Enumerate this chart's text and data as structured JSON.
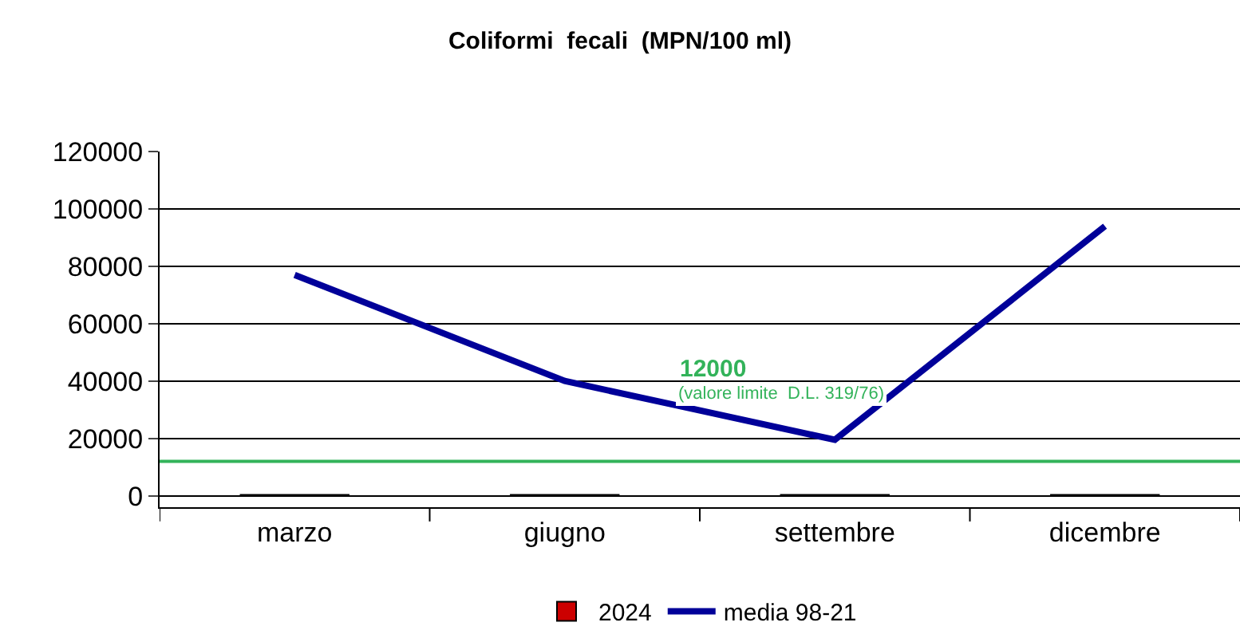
{
  "chart_data": {
    "type": "bar",
    "title": "Coliformi  fecali  (MPN/100 ml)",
    "categories": [
      "marzo",
      "giugno",
      "settembre",
      "dicembre"
    ],
    "series": [
      {
        "name": "2024",
        "color": "#cc0000",
        "values": [
          300,
          300,
          300,
          300
        ]
      },
      {
        "name": "media 98-21",
        "type": "line",
        "color": "#000099",
        "values": [
          77000,
          40000,
          19500,
          94000
        ]
      }
    ],
    "ylim": [
      -4000,
      120000
    ],
    "yticks": [
      0,
      20000,
      40000,
      60000,
      80000,
      100000,
      120000
    ],
    "grid": "y",
    "legend": "bottom",
    "marker": "none",
    "ref_lines": [
      {
        "axis": "y",
        "value": 12000,
        "label": "12000",
        "color": "#33b35a"
      }
    ],
    "annotations": [
      "(valore limite  D.L. 319/76)"
    ]
  }
}
